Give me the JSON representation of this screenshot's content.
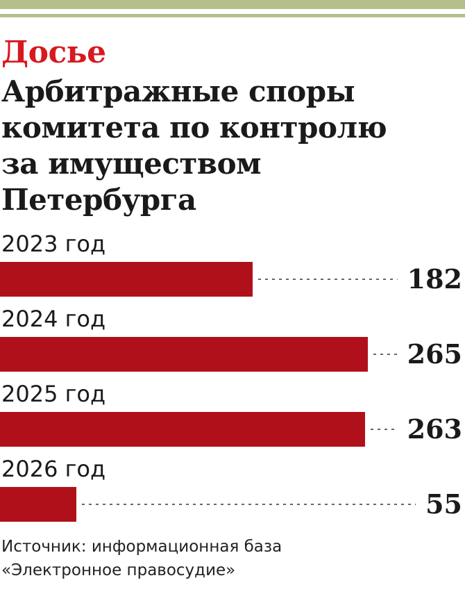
{
  "header": {
    "kicker": "Досье",
    "title": "Арбитражные споры\nкомитета по контролю\nза имуществом\nПетербурга"
  },
  "colors": {
    "bar": "#b01019",
    "kicker": "#d71920",
    "rule": "#b5bf8c"
  },
  "chart_data": {
    "type": "bar",
    "orientation": "horizontal",
    "categories": [
      "2023 год",
      "2024 год",
      "2025 год",
      "2026 год"
    ],
    "values": [
      182,
      265,
      263,
      55
    ],
    "value_labels": [
      "182",
      "265",
      "263",
      "55"
    ],
    "xlim": [
      0,
      340
    ]
  },
  "source": {
    "line1": "Источник: информационная база",
    "line2": "«Электронное правосудие»"
  }
}
